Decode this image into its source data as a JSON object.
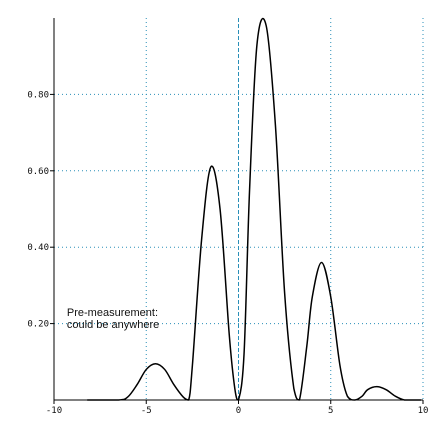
{
  "chart_data": {
    "type": "line",
    "title": "",
    "xlabel": "",
    "ylabel": "",
    "xlim": [
      -10,
      10
    ],
    "ylim": [
      0,
      1
    ],
    "x_ticks": [
      -10,
      -5,
      0,
      5,
      10
    ],
    "x_tick_labels": [
      "-10",
      "-5",
      "0",
      "5",
      "10"
    ],
    "y_ticks": [
      0.2,
      0.4,
      0.6,
      0.8
    ],
    "y_tick_labels": [
      "0.20",
      "0.40",
      "0.60",
      "0.80"
    ],
    "grid": true,
    "legend": "none",
    "annotation": {
      "lines": [
        "Pre-measurement:",
        "could be anywhere"
      ],
      "x": -9.3,
      "y": 0.22
    },
    "colors": {
      "curve": "#000000",
      "grid": "#2a8fb8",
      "axis": "#000000",
      "zero_line": "#2a8fb8"
    },
    "series": [
      {
        "x": [
          -8.2,
          -6.5,
          -6.0,
          -5.5,
          -5.0,
          -4.5,
          -4.0,
          -3.5,
          -3.0,
          -2.7,
          -2.5,
          -2.0,
          -1.5,
          -1.0,
          -0.5,
          -0.2,
          0.0,
          0.3,
          0.6,
          1.0,
          1.5,
          2.0,
          2.5,
          3.0,
          3.3,
          3.7,
          4.0,
          4.5,
          5.0,
          5.5,
          5.9,
          6.3,
          6.7,
          7.0,
          7.5,
          8.0,
          8.5,
          9.0,
          9.5,
          9.9
        ],
        "y": [
          0.0,
          0.0,
          0.008,
          0.04,
          0.08,
          0.095,
          0.08,
          0.04,
          0.008,
          0.0,
          0.09,
          0.42,
          0.61,
          0.5,
          0.17,
          0.03,
          0.0,
          0.12,
          0.55,
          0.93,
          0.98,
          0.72,
          0.28,
          0.03,
          0.0,
          0.14,
          0.27,
          0.36,
          0.27,
          0.09,
          0.01,
          0.0,
          0.01,
          0.027,
          0.035,
          0.027,
          0.01,
          0.0,
          0.0,
          0.0
        ]
      }
    ]
  }
}
